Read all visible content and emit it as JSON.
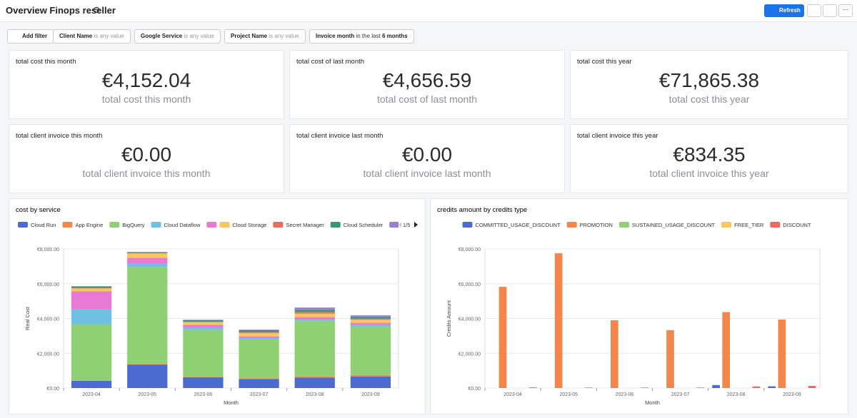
{
  "header": {
    "title": "Overview Finops reseller",
    "refresh": "Refresh"
  },
  "filters": {
    "add": "Add filter",
    "items": [
      {
        "name": "Client Name",
        "condition": "is any value"
      },
      {
        "name": "Google Service",
        "condition": "is any value"
      },
      {
        "name": "Project Name",
        "condition": "is any value"
      },
      {
        "name": "Invoice month",
        "condition": "in the last",
        "value": "6 months"
      }
    ]
  },
  "kpis": [
    {
      "title": "total cost this month",
      "value": "€4,152.04",
      "label": "total cost this month"
    },
    {
      "title": "total cost of last month",
      "value": "€4,656.59",
      "label": "total cost of last month"
    },
    {
      "title": "total cost this year",
      "value": "€71,865.38",
      "label": "total cost this year"
    },
    {
      "title": "total client invoice this month",
      "value": "€0.00",
      "label": "total client invoice this month"
    },
    {
      "title": "total client invoice last month",
      "value": "€0.00",
      "label": "total client invoice last month"
    },
    {
      "title": "total client invoice this year",
      "value": "€834.35",
      "label": "total client invoice this year"
    }
  ],
  "chart_data": [
    {
      "type": "bar",
      "stacked": true,
      "title": "cost by service",
      "xlabel": "Month",
      "ylabel": "Real Cost",
      "legend_page": "1/5",
      "categories": [
        "2023-04",
        "2023-05",
        "2023-06",
        "2023-07",
        "2023-08",
        "2023-09"
      ],
      "series": [
        {
          "name": "Cloud Run",
          "color": "#4c6bd0",
          "values": [
            420,
            1350,
            620,
            520,
            600,
            660
          ]
        },
        {
          "name": "App Engine",
          "color": "#f5864b",
          "values": [
            20,
            30,
            30,
            40,
            70,
            90
          ]
        },
        {
          "name": "BigQuery",
          "color": "#8fd172",
          "values": [
            3230,
            5580,
            2700,
            2250,
            3180,
            2800
          ]
        },
        {
          "name": "Cloud Dataflow",
          "color": "#6fc1e4",
          "values": [
            860,
            200,
            120,
            60,
            80,
            80
          ]
        },
        {
          "color": "#e87ad6",
          "values": [
            1030,
            330,
            160,
            100,
            150,
            120
          ]
        },
        {
          "name": "Cloud Storage",
          "color": "#f9c85d",
          "values": [
            170,
            250,
            160,
            200,
            200,
            180
          ]
        },
        {
          "name": "Secret Manager",
          "color": "#ee6a5d",
          "values": [
            30,
            30,
            30,
            40,
            100,
            60
          ]
        },
        {
          "name": "Cloud Scheduler",
          "color": "#2f9c6c",
          "values": [
            80,
            40,
            90,
            120,
            120,
            90
          ]
        },
        {
          "name": "Cloud Logging",
          "color": "#9b7ed2",
          "values": [
            20,
            20,
            20,
            30,
            130,
            100
          ]
        }
      ],
      "ylim": [
        0,
        8000
      ],
      "yticks": [
        {
          "value": 0,
          "label": "€0.00"
        },
        {
          "value": 2000,
          "label": "€2,000.00"
        },
        {
          "value": 4000,
          "label": "€4,000.00"
        },
        {
          "value": 6000,
          "label": "€6,000.00"
        },
        {
          "value": 8000,
          "label": "€8,000.00"
        }
      ],
      "grid": true
    },
    {
      "type": "bar",
      "stacked": false,
      "title": "credits amount by credits type",
      "xlabel": "Month",
      "ylabel": "Credits Amount",
      "categories": [
        "2023-04",
        "2023-05",
        "2023-06",
        "2023-07",
        "2023-08",
        "2023-09"
      ],
      "series": [
        {
          "name": "COMMITTED_USAGE_DISCOUNT",
          "color": "#4c6bd0",
          "values": [
            0,
            0,
            0,
            0,
            170,
            100
          ]
        },
        {
          "name": "PROMOTION",
          "color": "#f5864b",
          "values": [
            5820,
            7750,
            3900,
            3330,
            4370,
            3940
          ]
        },
        {
          "name": "SUSTAINED_USAGE_DISCOUNT",
          "color": "#8fd172",
          "values": [
            0,
            0,
            0,
            0,
            0,
            0
          ]
        },
        {
          "name": "FREE_TIER",
          "color": "#f9c85d",
          "values": [
            0,
            0,
            0,
            0,
            0,
            0
          ]
        },
        {
          "name": "DISCOUNT",
          "color": "#ee6a5d",
          "values": [
            40,
            30,
            30,
            30,
            90,
            120
          ]
        }
      ],
      "ylim": [
        0,
        8000
      ],
      "yticks": [
        {
          "value": 0,
          "label": "€0.00"
        },
        {
          "value": 2000,
          "label": "€2,000.00"
        },
        {
          "value": 4000,
          "label": "€4,000.00"
        },
        {
          "value": 6000,
          "label": "€6,000.00"
        },
        {
          "value": 8000,
          "label": "€8,000.00"
        }
      ],
      "grid": true
    }
  ]
}
